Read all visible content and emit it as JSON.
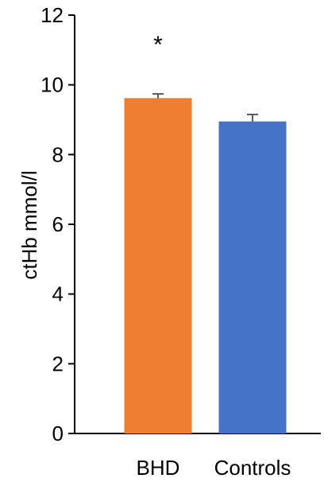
{
  "chart_data": {
    "type": "bar",
    "ylabel": "ctHb mmol/l",
    "xlabel": "",
    "ylim": [
      0,
      12
    ],
    "yticks": [
      0,
      2,
      4,
      6,
      8,
      10,
      12
    ],
    "categories": [
      "BHD",
      "Controls"
    ],
    "values": [
      9.62,
      8.95
    ],
    "errors": [
      0.12,
      0.2
    ],
    "colors": [
      "#ED7D31",
      "#4472C4"
    ],
    "annotations": [
      {
        "category": "BHD",
        "text": "*"
      }
    ],
    "grid": false
  }
}
